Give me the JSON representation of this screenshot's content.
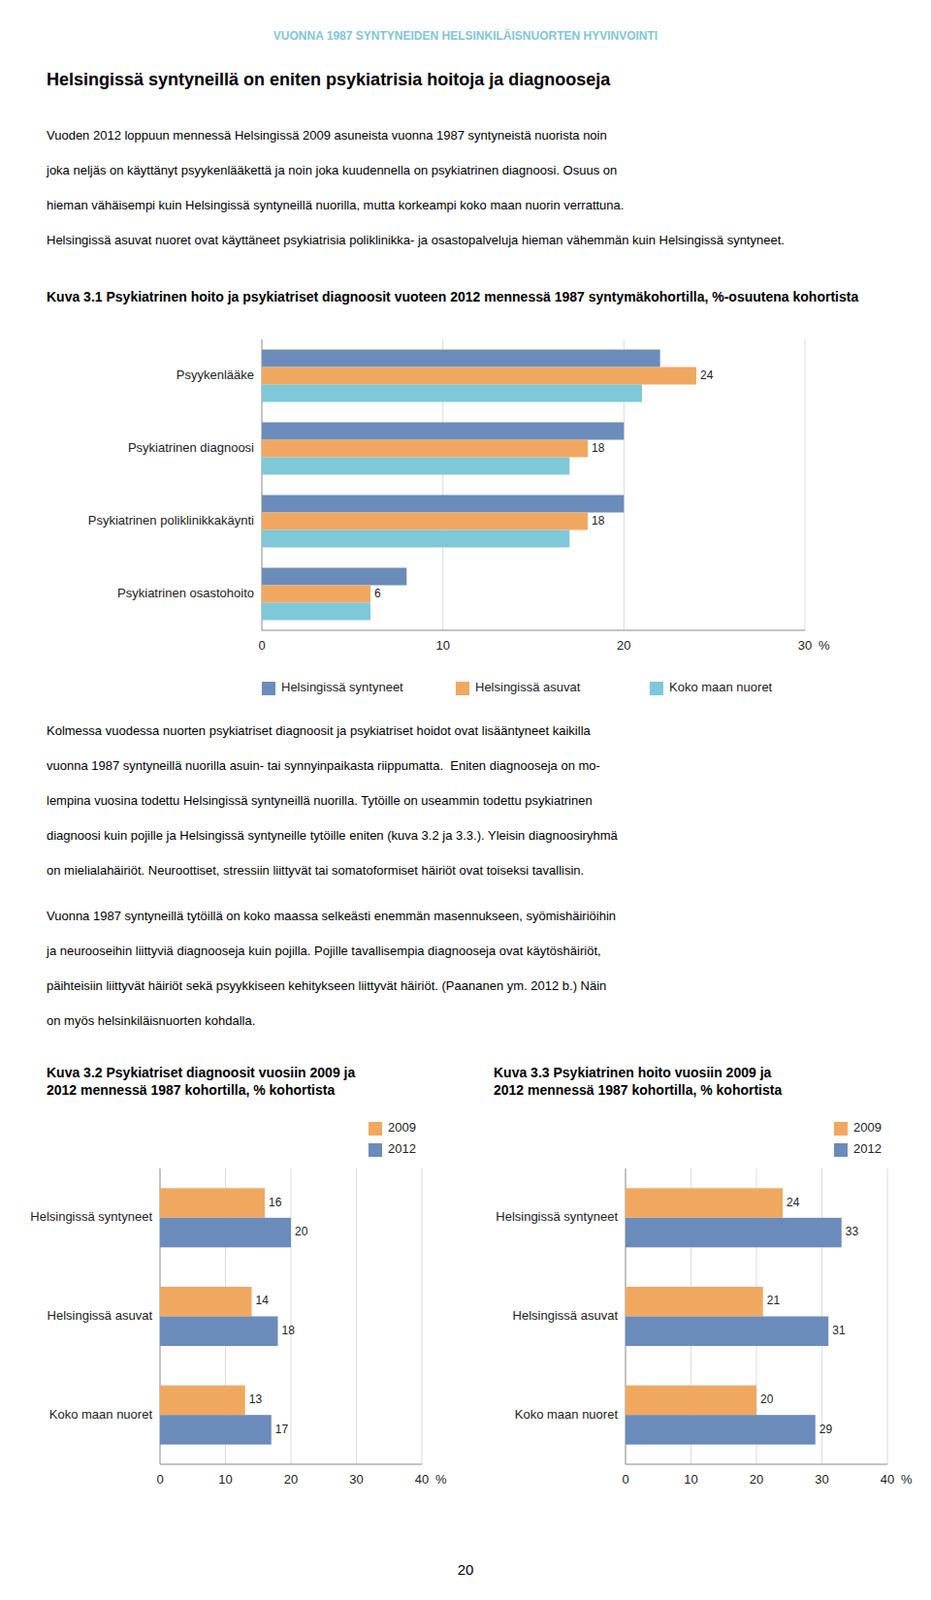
{
  "page_title": "VUONNA 1987 SYNTYNEIDEN HELSINKILÄISNUORTEN HYVINVOINTI",
  "page_title_color": "#7fc6d8",
  "background_color": "#ffffff",
  "heading": "Helsingissä syntyneillä on eniten psykiatrisia hoitoja ja diagnooseja",
  "paragraphs": [
    [
      "Vuoden 2012 loppuun mennessä Helsingissä 2009 asuneista vuonna 1987 syntyneistä nuorista noin",
      "joka neljäs on käyttänyt psyykenlääkettä ja noin joka kuudennella on psykiatrinen diagnoosi. Osuus on",
      "hieman vähäisempi kuin Helsingissä syntyneillä nuorilla, mutta korkeampi koko maan nuorin verrattuna.",
      "Helsingissä asuvat nuoret ovat käyttäneet psykiatrisia poliklinikka- ja osastopalveluja hieman vähemmän kuin Helsingissä syntyneet."
    ],
    [
      "Kolmessa vuodessa nuorten psykiatriset diagnoosit ja psykiatriset hoidot ovat lisääntyneet kaikilla",
      "vuonna 1987 syntyneillä nuorilla asuin- tai synnyinpaikasta riippumatta.  Eniten diagnooseja on mo-",
      "lempina vuosina todettu Helsingissä syntyneillä nuorilla. Tytöille on useammin todettu psykiatrinen",
      "diagnoosi kuin pojille ja Helsingissä syntyneille tytöille eniten (kuva 3.2 ja 3.3.). Yleisin diagnoosiryhmä",
      "on mielialahäiriöt. Neuroottiset, stressiin liittyvät tai somatoformiset häiriöt ovat toiseksi tavallisin."
    ],
    [
      "Vuonna 1987 syntyneillä tytöillä on koko maassa selkeästi enemmän masennukseen, syömishäiriöihin",
      "ja neurooseihin liittyviä diagnooseja kuin pojilla. Pojille tavallisempia diagnooseja ovat käytöshäiriöt,",
      "päihteisiin liittyvät häiriöt sekä psyykkiseen kehitykseen liittyvät häiriöt. (Paananen ym. 2012 b.) Näin",
      "on myös helsinkiläisnuorten kohdalla."
    ]
  ],
  "page_number": "20",
  "chart_data": [
    {
      "type": "bar",
      "orientation": "horizontal",
      "title": "Kuva 3.1 Psykiatrinen hoito ja psykiatriset diagnoosit vuoteen 2012 mennessä 1987 syntymäkohortilla, %-osuutena kohortista",
      "categories": [
        "Psyykenlääke",
        "Psykiatrinen diagnoosi",
        "Psykiatrinen poliklinikkakäynti",
        "Psykiatrinen osastohoito"
      ],
      "series": [
        {
          "name": "Helsingissä syntyneet",
          "color": "#6b8cba",
          "values": [
            22,
            20,
            20,
            8
          ]
        },
        {
          "name": "Helsingissä asuvat",
          "color": "#f0a860",
          "values": [
            24,
            18,
            18,
            6
          ],
          "data_labels": true
        },
        {
          "name": "Koko maan nuoret",
          "color": "#7ec8d8",
          "values": [
            21,
            17,
            17,
            6
          ]
        }
      ],
      "xlabel": "%",
      "xlim": [
        0,
        30
      ],
      "xticks": [
        0,
        10,
        20,
        30
      ],
      "grid": true,
      "legend": "bottom"
    },
    {
      "type": "bar",
      "orientation": "horizontal",
      "title": "Kuva 3.2 Psykiatriset diagnoosit vuosiin 2009 ja\n2012 mennessä 1987 kohortilla, % kohortista",
      "categories": [
        "Helsingissä syntyneet",
        "Helsingissä asuvat",
        "Koko maan nuoret"
      ],
      "series": [
        {
          "name": "2009",
          "color": "#f0a860",
          "values": [
            16,
            14,
            13
          ]
        },
        {
          "name": "2012",
          "color": "#6b8cba",
          "values": [
            20,
            18,
            17
          ]
        }
      ],
      "data_labels": true,
      "xlabel": "%",
      "xlim": [
        0,
        40
      ],
      "xticks": [
        0,
        10,
        20,
        30,
        40
      ],
      "grid": true,
      "legend": "top right"
    },
    {
      "type": "bar",
      "orientation": "horizontal",
      "title": "Kuva 3.3  Psykiatrinen hoito vuosiin 2009 ja\n2012 mennessä 1987 kohortilla, % kohortista",
      "categories": [
        "Helsingissä syntyneet",
        "Helsingissä asuvat",
        "Koko maan nuoret"
      ],
      "series": [
        {
          "name": "2009",
          "color": "#f0a860",
          "values": [
            24,
            21,
            20
          ]
        },
        {
          "name": "2012",
          "color": "#6b8cba",
          "values": [
            33,
            31,
            29
          ]
        }
      ],
      "data_labels": true,
      "xlabel": "%",
      "xlim": [
        0,
        40
      ],
      "xticks": [
        0,
        10,
        20,
        30,
        40
      ],
      "grid": true,
      "legend": "top right"
    }
  ]
}
